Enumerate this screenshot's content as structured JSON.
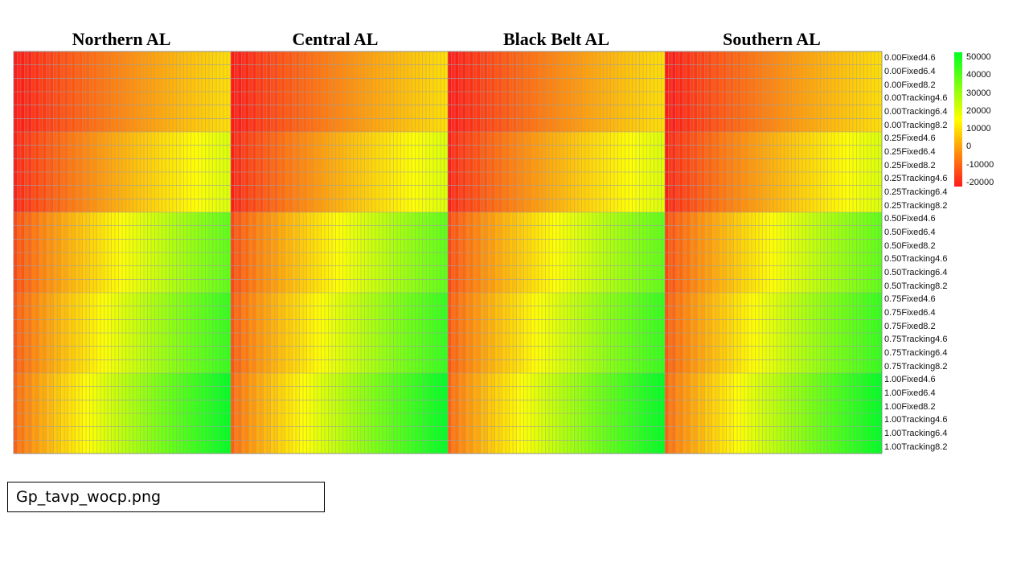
{
  "filename": "Gp_tavp_wocp.png",
  "chart_data": {
    "type": "heatmap",
    "panels": [
      "Northern AL",
      "Central AL",
      "Black Belt AL",
      "Southern AL"
    ],
    "rows": [
      "0.00Fixed4.6",
      "0.00Fixed6.4",
      "0.00Fixed8.2",
      "0.00Tracking4.6",
      "0.00Tracking6.4",
      "0.00Tracking8.2",
      "0.25Fixed4.6",
      "0.25Fixed6.4",
      "0.25Fixed8.2",
      "0.25Tracking4.6",
      "0.25Tracking6.4",
      "0.25Tracking8.2",
      "0.50Fixed4.6",
      "0.50Fixed6.4",
      "0.50Fixed8.2",
      "0.50Tracking4.6",
      "0.50Tracking6.4",
      "0.50Tracking8.2",
      "0.75Fixed4.6",
      "0.75Fixed6.4",
      "0.75Fixed8.2",
      "0.75Tracking4.6",
      "0.75Tracking6.4",
      "0.75Tracking8.2",
      "1.00Fixed4.6",
      "1.00Fixed6.4",
      "1.00Fixed8.2",
      "1.00Tracking4.6",
      "1.00Tracking6.4",
      "1.00Tracking8.2"
    ],
    "columns_per_panel": 60,
    "color_scale": {
      "min": -20000,
      "max": 50000,
      "ticks": [
        50000,
        40000,
        30000,
        20000,
        10000,
        0,
        -10000,
        -20000
      ],
      "colors": [
        "#ff1a1a",
        "#ffff00",
        "#00ff22"
      ]
    },
    "row_group_values": {
      "0.00": {
        "start": -20000,
        "end": 10000
      },
      "0.25": {
        "start": -18000,
        "end": 20000
      },
      "0.50": {
        "start": -12000,
        "end": 37000
      },
      "0.75": {
        "start": -10000,
        "end": 43000
      },
      "1.00": {
        "start": -8000,
        "end": 50000
      }
    },
    "column_banding": "values increase left to right within each panel, with alternating lighter/darker bands",
    "gridlines": true,
    "legend": "right"
  }
}
